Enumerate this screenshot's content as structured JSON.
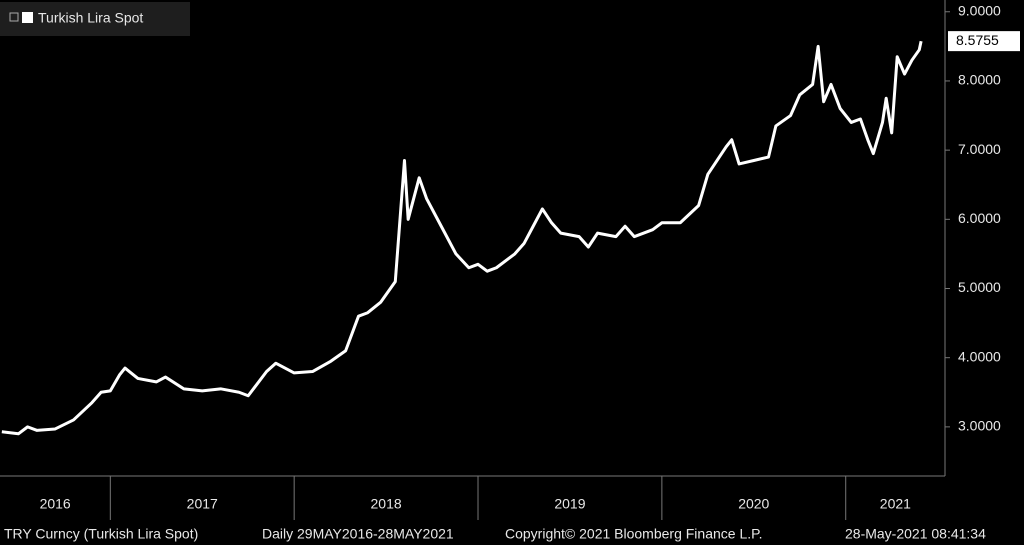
{
  "chart_data": {
    "type": "line",
    "legend": "top-left",
    "grid": false,
    "x": [
      2016.41,
      2016.5,
      2016.55,
      2016.6,
      2016.7,
      2016.8,
      2016.9,
      2016.95,
      2017.0,
      2017.05,
      2017.08,
      2017.15,
      2017.25,
      2017.3,
      2017.4,
      2017.5,
      2017.6,
      2017.7,
      2017.75,
      2017.85,
      2017.9,
      2017.95,
      2018.0,
      2018.1,
      2018.2,
      2018.28,
      2018.35,
      2018.4,
      2018.47,
      2018.55,
      2018.6,
      2018.62,
      2018.65,
      2018.68,
      2018.72,
      2018.8,
      2018.88,
      2018.95,
      2019.0,
      2019.05,
      2019.1,
      2019.2,
      2019.25,
      2019.3,
      2019.35,
      2019.4,
      2019.45,
      2019.55,
      2019.6,
      2019.65,
      2019.75,
      2019.8,
      2019.85,
      2019.95,
      2020.0,
      2020.1,
      2020.2,
      2020.25,
      2020.35,
      2020.38,
      2020.42,
      2020.5,
      2020.58,
      2020.62,
      2020.7,
      2020.75,
      2020.82,
      2020.85,
      2020.88,
      2020.92,
      2020.97,
      2021.03,
      2021.08,
      2021.12,
      2021.15,
      2021.2,
      2021.22,
      2021.25,
      2021.28,
      2021.32,
      2021.36,
      2021.4,
      2021.41
    ],
    "series": [
      {
        "name": "Turkish Lira Spot",
        "color": "#ffffff",
        "values": [
          2.93,
          2.9,
          3.0,
          2.95,
          2.97,
          3.1,
          3.35,
          3.5,
          3.52,
          3.75,
          3.85,
          3.7,
          3.65,
          3.72,
          3.55,
          3.52,
          3.55,
          3.5,
          3.45,
          3.8,
          3.92,
          3.85,
          3.78,
          3.8,
          3.95,
          4.1,
          4.6,
          4.65,
          4.8,
          5.1,
          6.85,
          6.0,
          6.3,
          6.6,
          6.3,
          5.9,
          5.5,
          5.3,
          5.35,
          5.25,
          5.3,
          5.5,
          5.65,
          5.9,
          6.15,
          5.95,
          5.8,
          5.75,
          5.6,
          5.8,
          5.75,
          5.9,
          5.75,
          5.85,
          5.95,
          5.95,
          6.2,
          6.65,
          7.05,
          7.15,
          6.8,
          6.85,
          6.9,
          7.35,
          7.5,
          7.8,
          7.95,
          8.5,
          7.7,
          7.95,
          7.6,
          7.4,
          7.45,
          7.15,
          6.95,
          7.4,
          7.75,
          7.25,
          8.35,
          8.1,
          8.3,
          8.45,
          8.5755
        ]
      }
    ],
    "xlim": [
      2016.4,
      2021.54
    ],
    "xticks": [
      2017,
      2018,
      2019,
      2020,
      2021
    ],
    "year_labels": [
      "2016",
      "2017",
      "2018",
      "2019",
      "2020",
      "2021"
    ],
    "ylim": [
      2.29,
      9.17
    ],
    "yticks": [
      {
        "value": 3,
        "label": "3.0000"
      },
      {
        "value": 4,
        "label": "4.0000"
      },
      {
        "value": 5,
        "label": "5.0000"
      },
      {
        "value": 6,
        "label": "6.0000"
      },
      {
        "value": 7,
        "label": "7.0000"
      },
      {
        "value": 8,
        "label": "8.0000"
      },
      {
        "value": 9,
        "label": "9.0000"
      }
    ],
    "footer": [
      "TRY Curncy (Turkish Lira Spot)",
      "Daily 29MAY2016-28MAY2021",
      "Copyright© 2021 Bloomberg Finance L.P.",
      "28-May-2021 08:41:34"
    ]
  }
}
